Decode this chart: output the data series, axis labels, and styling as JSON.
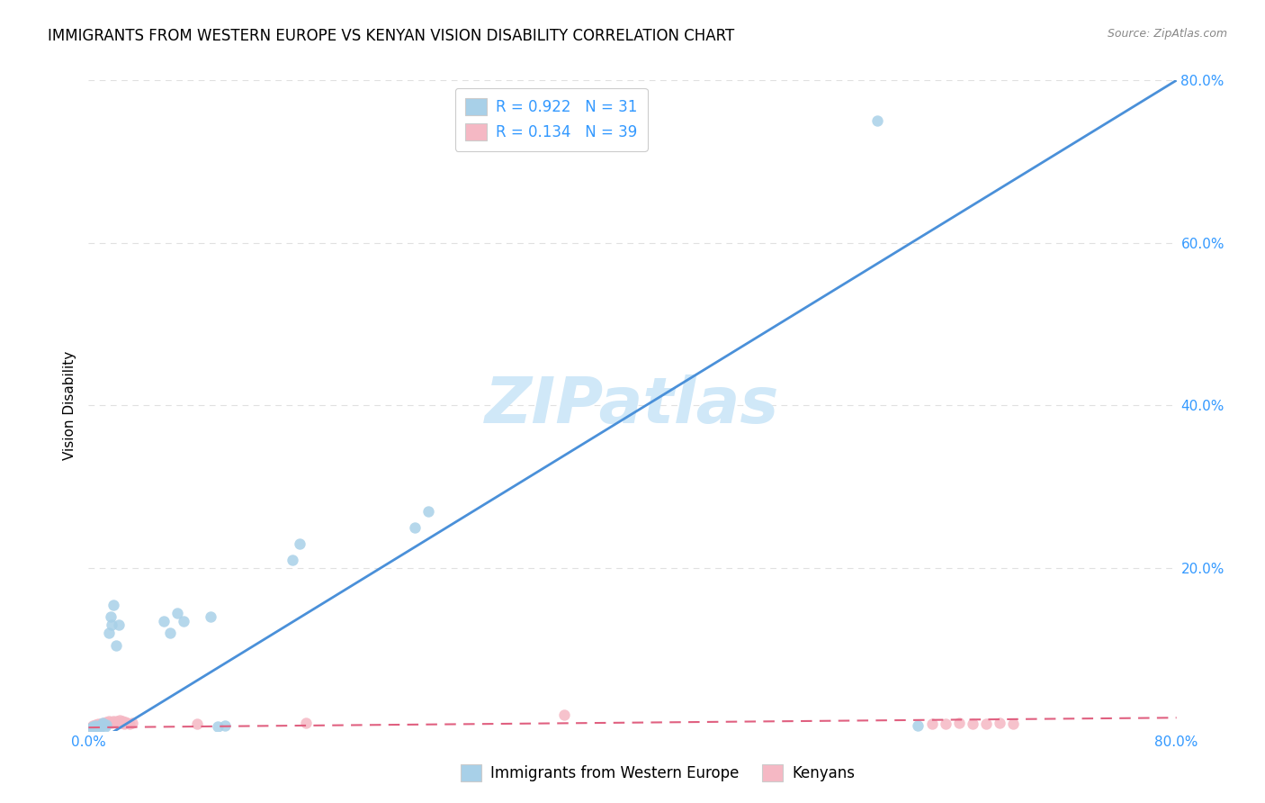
{
  "title": "IMMIGRANTS FROM WESTERN EUROPE VS KENYAN VISION DISABILITY CORRELATION CHART",
  "source": "Source: ZipAtlas.com",
  "ylabel": "Vision Disability",
  "watermark": "ZIPatlas",
  "blue_R": "0.922",
  "blue_N": "31",
  "pink_R": "0.134",
  "pink_N": "39",
  "blue_color": "#a8d0e8",
  "blue_line_color": "#4a90d9",
  "pink_color": "#f5b8c4",
  "pink_line_color": "#e06080",
  "axis_color": "#3399ff",
  "legend_label_blue": "Immigrants from Western Europe",
  "legend_label_pink": "Kenyans",
  "xlim": [
    0.0,
    0.8
  ],
  "ylim": [
    0.0,
    0.8
  ],
  "blue_scatter_x": [
    0.002,
    0.003,
    0.004,
    0.005,
    0.006,
    0.007,
    0.008,
    0.009,
    0.01,
    0.011,
    0.012,
    0.013,
    0.015,
    0.016,
    0.017,
    0.018,
    0.02,
    0.022,
    0.055,
    0.06,
    0.065,
    0.07,
    0.09,
    0.095,
    0.1,
    0.15,
    0.155,
    0.24,
    0.25,
    0.58,
    0.61
  ],
  "blue_scatter_y": [
    0.003,
    0.005,
    0.004,
    0.006,
    0.003,
    0.005,
    0.004,
    0.006,
    0.01,
    0.008,
    0.005,
    0.007,
    0.12,
    0.14,
    0.13,
    0.155,
    0.105,
    0.13,
    0.135,
    0.12,
    0.145,
    0.135,
    0.14,
    0.005,
    0.006,
    0.21,
    0.23,
    0.25,
    0.27,
    0.75,
    0.006
  ],
  "pink_scatter_x": [
    0.002,
    0.003,
    0.004,
    0.005,
    0.006,
    0.007,
    0.008,
    0.009,
    0.01,
    0.011,
    0.012,
    0.013,
    0.014,
    0.015,
    0.016,
    0.017,
    0.018,
    0.019,
    0.02,
    0.021,
    0.022,
    0.023,
    0.024,
    0.025,
    0.026,
    0.027,
    0.028,
    0.03,
    0.032,
    0.08,
    0.16,
    0.35,
    0.62,
    0.63,
    0.64,
    0.65,
    0.66,
    0.67,
    0.68
  ],
  "pink_scatter_y": [
    0.004,
    0.006,
    0.005,
    0.007,
    0.006,
    0.008,
    0.007,
    0.009,
    0.008,
    0.01,
    0.009,
    0.011,
    0.01,
    0.012,
    0.011,
    0.01,
    0.012,
    0.011,
    0.01,
    0.012,
    0.011,
    0.013,
    0.01,
    0.012,
    0.009,
    0.011,
    0.01,
    0.008,
    0.01,
    0.009,
    0.01,
    0.02,
    0.008,
    0.009,
    0.01,
    0.008,
    0.009,
    0.01,
    0.008
  ],
  "blue_line_x": [
    0.0,
    0.8
  ],
  "blue_line_y": [
    -0.02,
    0.8
  ],
  "pink_line_x": [
    0.0,
    0.8
  ],
  "pink_line_y": [
    0.004,
    0.016
  ],
  "grid_color": "#e0e0e0",
  "grid_yticks": [
    0.2,
    0.4,
    0.6,
    0.8
  ],
  "xticks": [
    0.0,
    0.2,
    0.4,
    0.6,
    0.8
  ],
  "yticks_right": [
    0.2,
    0.4,
    0.6,
    0.8
  ],
  "background_color": "#ffffff",
  "title_fontsize": 12,
  "axis_label_fontsize": 11,
  "tick_fontsize": 11,
  "legend_fontsize": 12,
  "watermark_fontsize": 52,
  "watermark_color": "#d0e8f8",
  "right_tick_color": "#3399ff",
  "scatter_size": 80
}
